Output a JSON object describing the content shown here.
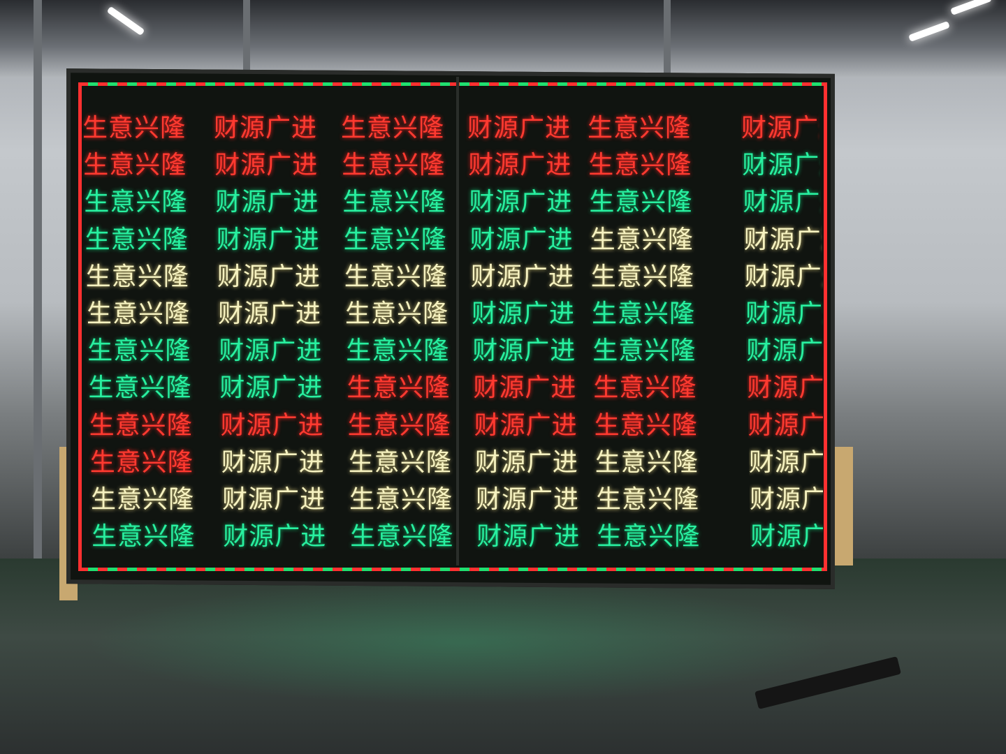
{
  "colors": {
    "red": "#ff3a30",
    "green": "#28f0a0",
    "yellow": "#f6f2c0"
  },
  "phrases": {
    "a": "生意兴隆",
    "b": "财源广进"
  },
  "rows": [
    [
      "red",
      "red",
      "red",
      "red",
      "red",
      "red"
    ],
    [
      "red",
      "red",
      "red",
      "red",
      "red",
      "green"
    ],
    [
      "green",
      "green",
      "green",
      "green",
      "green",
      "green"
    ],
    [
      "green",
      "green",
      "green",
      "green",
      "yellow",
      "yellow"
    ],
    [
      "yellow",
      "yellow",
      "yellow",
      "yellow",
      "yellow",
      "yellow"
    ],
    [
      "yellow",
      "yellow",
      "yellow",
      "green",
      "green",
      "green"
    ],
    [
      "green",
      "green",
      "green",
      "green",
      "green",
      "green"
    ],
    [
      "green",
      "green",
      "red",
      "red",
      "red",
      "red"
    ],
    [
      "red",
      "red",
      "red",
      "red",
      "red",
      "red"
    ],
    [
      "red",
      "yellow",
      "yellow",
      "yellow",
      "yellow",
      "yellow"
    ],
    [
      "yellow",
      "yellow",
      "yellow",
      "yellow",
      "yellow",
      "yellow"
    ],
    [
      "green",
      "green",
      "green",
      "green",
      "green",
      "green"
    ]
  ]
}
